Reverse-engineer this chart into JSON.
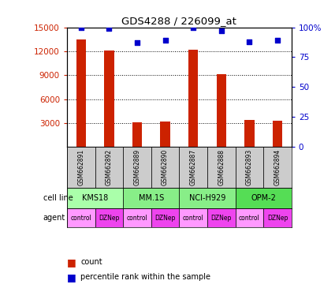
{
  "title": "GDS4288 / 226099_at",
  "samples": [
    "GSM662891",
    "GSM662892",
    "GSM662889",
    "GSM662890",
    "GSM662887",
    "GSM662888",
    "GSM662893",
    "GSM662894"
  ],
  "bar_values": [
    13500,
    12100,
    3100,
    3200,
    12200,
    9100,
    3400,
    3300
  ],
  "percentile_values": [
    100,
    99,
    87,
    89,
    100,
    97,
    88,
    89
  ],
  "agents": [
    "control",
    "DZNep",
    "control",
    "DZNep",
    "control",
    "DZNep",
    "control",
    "DZNep"
  ],
  "bar_color": "#cc2200",
  "dot_color": "#0000cc",
  "ylim_left": [
    0,
    15000
  ],
  "yticks_left": [
    3000,
    6000,
    9000,
    12000,
    15000
  ],
  "ylim_right": [
    0,
    100
  ],
  "yticks_right": [
    0,
    25,
    50,
    75,
    100
  ],
  "ylabel_left_color": "#cc2200",
  "ylabel_right_color": "#0000cc",
  "background_color": "#ffffff",
  "cell_line_colors": [
    "#aaffaa",
    "#88ee88",
    "#88ee88",
    "#55dd55"
  ],
  "control_color": "#ff99ff",
  "dzNep_color": "#ee44ee",
  "sample_box_color": "#cccccc",
  "cell_lines": [
    {
      "name": "KMS18",
      "start": 0,
      "end": 2
    },
    {
      "name": "MM.1S",
      "start": 2,
      "end": 4
    },
    {
      "name": "NCI-H929",
      "start": 4,
      "end": 6
    },
    {
      "name": "OPM-2",
      "start": 6,
      "end": 8
    }
  ]
}
